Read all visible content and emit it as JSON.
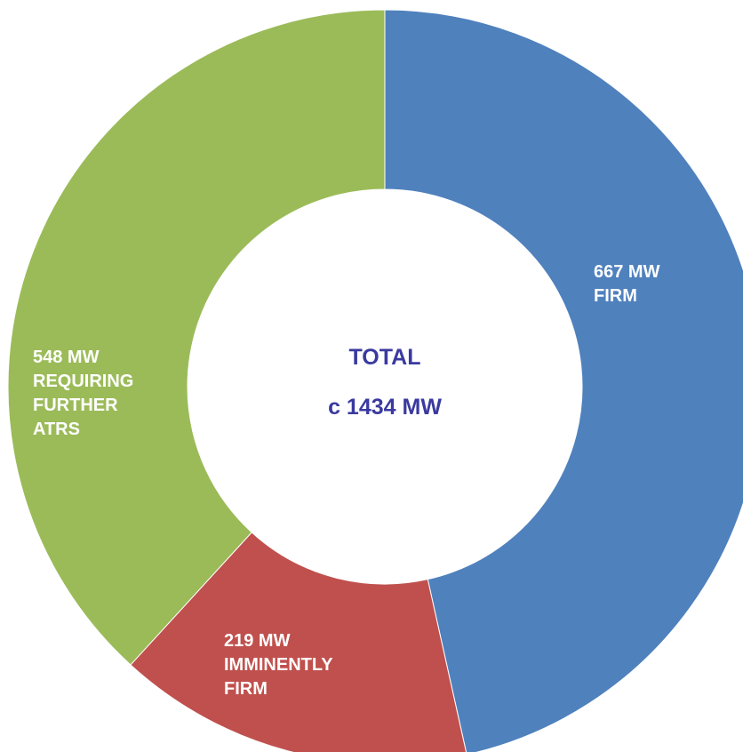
{
  "chart_data": {
    "type": "pie",
    "variant": "donut",
    "categories": [
      "FIRM",
      "IMMINENTLY FIRM",
      "REQUIRING FURTHER ATRS"
    ],
    "values": [
      667,
      219,
      548
    ],
    "unit": "MW",
    "slices": [
      {
        "name": "FIRM",
        "value": 667,
        "color": "#4f81bd",
        "label_lines": [
          "667 MW",
          "FIRM"
        ]
      },
      {
        "name": "IMMINENTLY FIRM",
        "value": 219,
        "color": "#c0504d",
        "label_lines": [
          "219 MW",
          "IMMINENTLY",
          "FIRM"
        ]
      },
      {
        "name": "REQUIRING FURTHER ATRS",
        "value": 548,
        "color": "#9bbb59",
        "label_lines": [
          "548 MW",
          "REQUIRING",
          "FURTHER",
          "ATRS"
        ]
      }
    ],
    "center": {
      "line1": "TOTAL",
      "line2": "c 1434 MW"
    },
    "legend": "none",
    "start_angle": "12 o'clock",
    "direction": "clockwise"
  }
}
